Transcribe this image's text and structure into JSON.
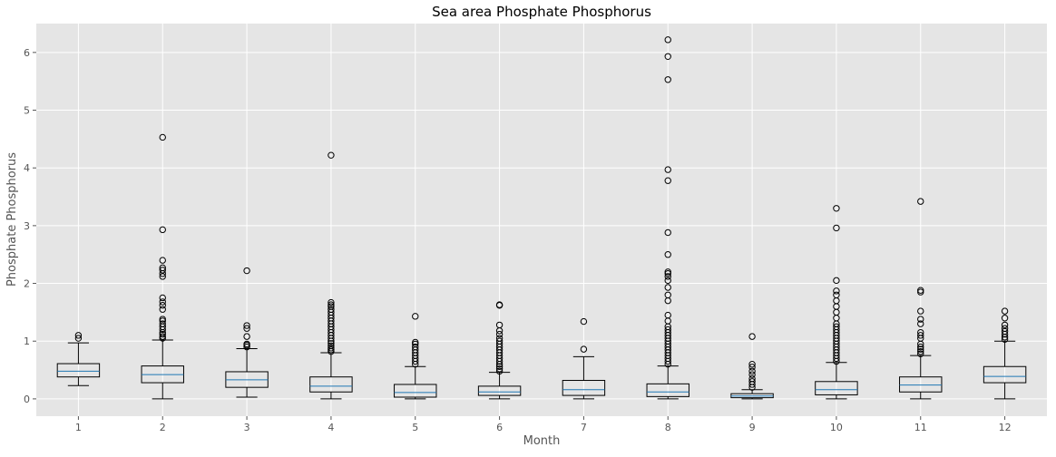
{
  "chart_data": {
    "type": "box",
    "title": "Sea area Phosphate Phosphorus",
    "xlabel": "Month",
    "ylabel": "Phosphate Phosphorus",
    "ylim": [
      -0.3,
      6.5
    ],
    "yticks": [
      0,
      1,
      2,
      3,
      4,
      5,
      6
    ],
    "grid": true,
    "background": "#e5e5e5",
    "grid_color": "#ffffff",
    "box_color": "#000000",
    "median_color": "#1f77b4",
    "categories": [
      "1",
      "2",
      "3",
      "4",
      "5",
      "6",
      "7",
      "8",
      "9",
      "10",
      "11",
      "12"
    ],
    "boxes": [
      {
        "whislo": 0.23,
        "q1": 0.38,
        "med": 0.48,
        "q3": 0.61,
        "whishi": 0.97,
        "fliers": [
          1.05,
          1.1
        ]
      },
      {
        "whislo": 0.0,
        "q1": 0.28,
        "med": 0.42,
        "q3": 0.57,
        "whishi": 1.02,
        "fliers": [
          1.05,
          1.08,
          1.12,
          1.15,
          1.2,
          1.25,
          1.3,
          1.35,
          1.38,
          1.55,
          1.62,
          1.68,
          1.75,
          2.12,
          2.17,
          2.23,
          2.27,
          2.4,
          2.93,
          4.53
        ]
      },
      {
        "whislo": 0.03,
        "q1": 0.2,
        "med": 0.33,
        "q3": 0.47,
        "whishi": 0.87,
        "fliers": [
          0.9,
          0.93,
          0.95,
          1.08,
          1.22,
          1.27,
          2.22
        ]
      },
      {
        "whislo": 0.0,
        "q1": 0.12,
        "med": 0.22,
        "q3": 0.38,
        "whishi": 0.8,
        "fliers": [
          0.82,
          0.85,
          0.88,
          0.92,
          0.96,
          1.0,
          1.05,
          1.1,
          1.15,
          1.2,
          1.25,
          1.3,
          1.35,
          1.4,
          1.45,
          1.5,
          1.55,
          1.6,
          1.63,
          1.67,
          4.22
        ]
      },
      {
        "whislo": 0.0,
        "q1": 0.03,
        "med": 0.11,
        "q3": 0.25,
        "whishi": 0.56,
        "fliers": [
          0.6,
          0.65,
          0.7,
          0.75,
          0.8,
          0.85,
          0.9,
          0.95,
          0.98,
          1.43
        ]
      },
      {
        "whislo": 0.0,
        "q1": 0.06,
        "med": 0.12,
        "q3": 0.22,
        "whishi": 0.46,
        "fliers": [
          0.48,
          0.52,
          0.56,
          0.6,
          0.65,
          0.7,
          0.75,
          0.8,
          0.85,
          0.9,
          0.95,
          1.0,
          1.05,
          1.12,
          1.18,
          1.28,
          1.62,
          1.63
        ]
      },
      {
        "whislo": 0.0,
        "q1": 0.06,
        "med": 0.16,
        "q3": 0.32,
        "whishi": 0.73,
        "fliers": [
          0.86,
          1.34
        ]
      },
      {
        "whislo": 0.0,
        "q1": 0.04,
        "med": 0.12,
        "q3": 0.26,
        "whishi": 0.57,
        "fliers": [
          0.6,
          0.65,
          0.7,
          0.75,
          0.8,
          0.85,
          0.9,
          0.95,
          1.0,
          1.05,
          1.1,
          1.15,
          1.2,
          1.25,
          1.35,
          1.45,
          1.7,
          1.8,
          1.93,
          2.05,
          2.12,
          2.17,
          2.2,
          2.5,
          2.88,
          3.78,
          3.97,
          5.53,
          5.93,
          6.22
        ]
      },
      {
        "whislo": 0.0,
        "q1": 0.02,
        "med": 0.05,
        "q3": 0.09,
        "whishi": 0.16,
        "fliers": [
          0.2,
          0.25,
          0.3,
          0.35,
          0.42,
          0.48,
          0.55,
          0.6,
          1.08
        ]
      },
      {
        "whislo": 0.0,
        "q1": 0.07,
        "med": 0.16,
        "q3": 0.3,
        "whishi": 0.63,
        "fliers": [
          0.65,
          0.7,
          0.75,
          0.8,
          0.85,
          0.9,
          0.95,
          1.0,
          1.05,
          1.1,
          1.15,
          1.2,
          1.25,
          1.3,
          1.4,
          1.5,
          1.6,
          1.7,
          1.8,
          1.87,
          2.05,
          2.96,
          3.3
        ]
      },
      {
        "whislo": 0.0,
        "q1": 0.12,
        "med": 0.24,
        "q3": 0.38,
        "whishi": 0.75,
        "fliers": [
          0.78,
          0.82,
          0.86,
          0.9,
          0.95,
          1.05,
          1.1,
          1.15,
          1.3,
          1.38,
          1.52,
          1.85,
          1.88,
          3.42
        ]
      },
      {
        "whislo": 0.0,
        "q1": 0.28,
        "med": 0.39,
        "q3": 0.56,
        "whishi": 1.0,
        "fliers": [
          1.03,
          1.07,
          1.12,
          1.17,
          1.22,
          1.28,
          1.4,
          1.52
        ]
      }
    ]
  }
}
